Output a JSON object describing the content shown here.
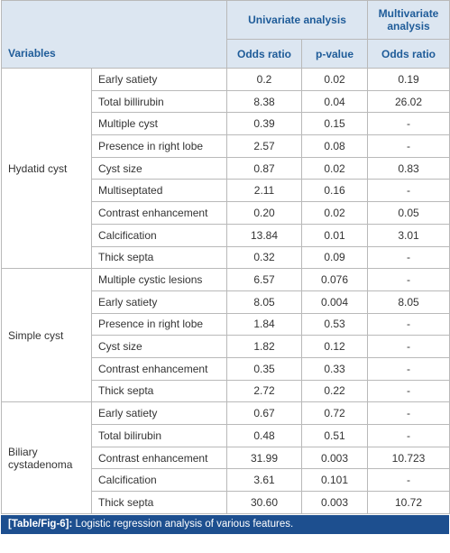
{
  "header": {
    "variables": "Variables",
    "univariate": "Univariate analysis",
    "multivariate": "Multivariate analysis",
    "odds_ratio_uni": "Odds ratio",
    "p_value": "p-value",
    "odds_ratio_multi": "Odds ratio"
  },
  "groups": [
    {
      "name": "Hydatid cyst",
      "rows": [
        [
          "Early satiety",
          "0.2",
          "0.02",
          "0.19"
        ],
        [
          "Total billirubin",
          "8.38",
          "0.04",
          "26.02"
        ],
        [
          "Multiple cyst",
          "0.39",
          "0.15",
          "-"
        ],
        [
          "Presence in right lobe",
          "2.57",
          "0.08",
          "-"
        ],
        [
          "Cyst size",
          "0.87",
          "0.02",
          "0.83"
        ],
        [
          "Multiseptated",
          "2.11",
          "0.16",
          "-"
        ],
        [
          "Contrast enhancement",
          "0.20",
          "0.02",
          "0.05"
        ],
        [
          "Calcification",
          "13.84",
          "0.01",
          "3.01"
        ],
        [
          "Thick septa",
          "0.32",
          "0.09",
          "-"
        ]
      ]
    },
    {
      "name": "Simple cyst",
      "rows": [
        [
          "Multiple cystic lesions",
          "6.57",
          "0.076",
          "-"
        ],
        [
          "Early satiety",
          "8.05",
          "0.004",
          "8.05"
        ],
        [
          "Presence in right lobe",
          "1.84",
          "0.53",
          "-"
        ],
        [
          "Cyst size",
          "1.82",
          "0.12",
          "-"
        ],
        [
          "Contrast enhancement",
          "0.35",
          "0.33",
          "-"
        ],
        [
          "Thick septa",
          "2.72",
          "0.22",
          "-"
        ]
      ]
    },
    {
      "name": "Biliary cystadenoma",
      "rows": [
        [
          "Early satiety",
          "0.67",
          "0.72",
          "-"
        ],
        [
          "Total bilirubin",
          "0.48",
          "0.51",
          "-"
        ],
        [
          "Contrast enhancement",
          "31.99",
          "0.003",
          "10.723"
        ],
        [
          "Calcification",
          "3.61",
          "0.101",
          "-"
        ],
        [
          "Thick septa",
          "30.60",
          "0.003",
          "10.72"
        ]
      ]
    }
  ],
  "caption": {
    "label": "[Table/Fig-6]:",
    "text": "Logistic regression analysis of various features."
  }
}
